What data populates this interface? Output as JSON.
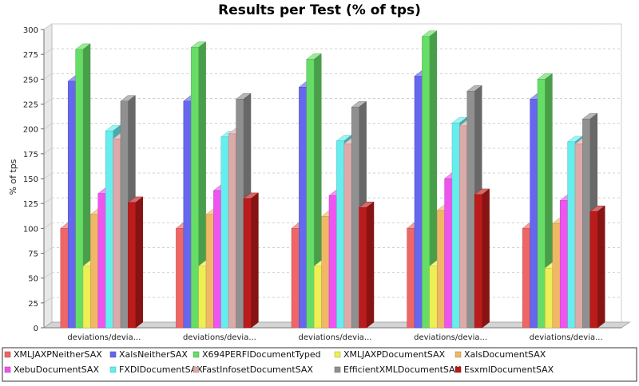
{
  "chart_data": {
    "type": "bar",
    "title": "Results per Test (% of tps)",
    "xlabel": "",
    "ylabel": "% of tps",
    "ylim": [
      0,
      300
    ],
    "yticks": [
      0,
      25,
      50,
      75,
      100,
      125,
      150,
      175,
      200,
      225,
      250,
      275,
      300
    ],
    "grid": true,
    "legend_position": "bottom",
    "categories": [
      "deviations/devia...",
      "deviations/devia...",
      "deviations/devia...",
      "deviations/devia...",
      "deviations/devia..."
    ],
    "series": [
      {
        "name": "XMLJAXPNeitherSAX",
        "color": "#ee6666",
        "values": [
          100,
          100,
          100,
          100,
          100
        ]
      },
      {
        "name": "XalsNeitherSAX",
        "color": "#6666ee",
        "values": [
          248,
          228,
          242,
          253,
          230
        ]
      },
      {
        "name": "X694PERFIDocumentTyped",
        "color": "#66dd66",
        "values": [
          280,
          282,
          270,
          293,
          250
        ]
      },
      {
        "name": "XMLJAXPDocumentSAX",
        "color": "#eeee55",
        "values": [
          62,
          62,
          62,
          62,
          60
        ]
      },
      {
        "name": "XalsDocumentSAX",
        "color": "#f0b865",
        "values": [
          114,
          114,
          112,
          118,
          105
        ]
      },
      {
        "name": "XebuDocumentSAX",
        "color": "#ee55ee",
        "values": [
          135,
          138,
          133,
          150,
          128
        ]
      },
      {
        "name": "FXDIDocumentSAX",
        "color": "#66eeee",
        "values": [
          198,
          192,
          188,
          206,
          187
        ]
      },
      {
        "name": "FastInfosetDocumentSAX",
        "color": "#ddaaaa",
        "values": [
          190,
          195,
          185,
          203,
          185
        ]
      },
      {
        "name": "EfficientXMLDocumentSAX",
        "color": "#909090",
        "values": [
          228,
          230,
          222,
          238,
          210
        ]
      },
      {
        "name": "EsxmlDocumentSAX",
        "color": "#bb1b1b",
        "values": [
          126,
          130,
          121,
          134,
          117
        ]
      }
    ]
  }
}
